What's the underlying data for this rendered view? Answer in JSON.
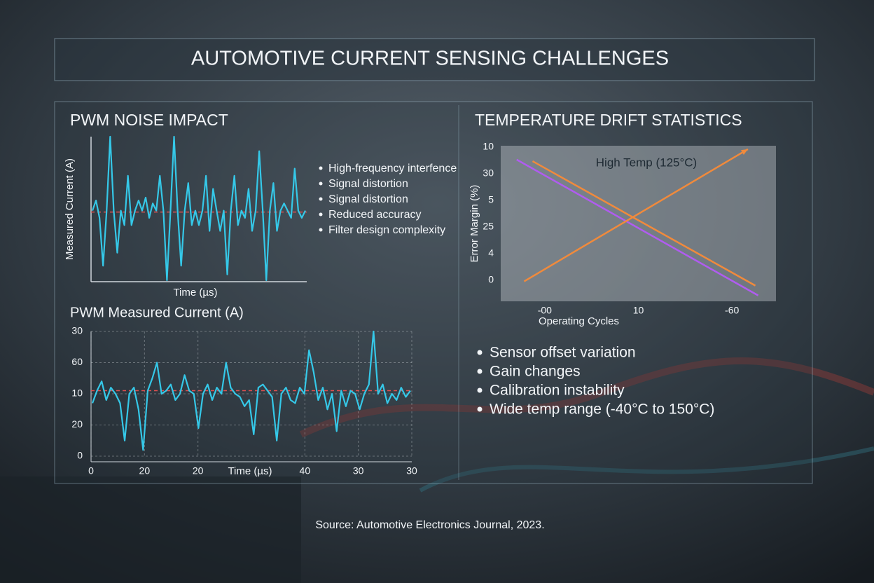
{
  "title": "AUTOMOTIVE CURRENT SENSING CHALLENGES",
  "source": "Source: Automotive Electronics Journal, 2023.",
  "bullets_left": [
    "High-frequency interfence",
    "Signal distortion",
    "Signal distortion",
    "Reduced accuracy",
    "Filter design complexity"
  ],
  "bullets_right": [
    "Sensor offset variation",
    "Gain changes",
    "Calibration instability",
    "Wide temp range (-40°C to 150°C)"
  ],
  "chart_data": [
    {
      "type": "line",
      "title": "PWM NOISE IMPACT",
      "y_label": "Measured Current (A)",
      "x_label": "Time (µs)",
      "ylim": [
        0,
        100
      ],
      "series": [
        {
          "color": "#35c8e8",
          "values": [
            49,
            56,
            44,
            11,
            49,
            100,
            49,
            20,
            49,
            39,
            73,
            39,
            49,
            56,
            49,
            58,
            44,
            54,
            49,
            73,
            49,
            1,
            49,
            100,
            49,
            11,
            49,
            68,
            39,
            49,
            39,
            49,
            73,
            35,
            64,
            49,
            35,
            49,
            5,
            49,
            73,
            39,
            49,
            44,
            64,
            35,
            49,
            90,
            49,
            1,
            49,
            68,
            35,
            49,
            54,
            49,
            44,
            78,
            49,
            44,
            49
          ]
        }
      ],
      "reference_line": {
        "value": 48,
        "color": "#e05050"
      }
    },
    {
      "type": "line",
      "title": "PWM Measured Current (A)",
      "x_label": "Time (µs)",
      "ylim": [
        0,
        40
      ],
      "yticks": [
        {
          "value": 40,
          "label": "30"
        },
        {
          "value": 30,
          "label": "60"
        },
        {
          "value": 20,
          "label": "10"
        },
        {
          "value": 10,
          "label": "20"
        },
        0
      ],
      "xlim": [
        0,
        6
      ],
      "xticks": [
        0,
        {
          "value": 1,
          "label": "20"
        },
        {
          "value": 2,
          "label": "20"
        },
        {
          "value": 4,
          "label": "40"
        },
        {
          "value": 5,
          "label": "30"
        },
        {
          "value": 6,
          "label": "30"
        }
      ],
      "grid": true,
      "series": [
        {
          "color": "#35c8e8",
          "values": [
            17,
            21,
            24,
            18,
            22,
            20,
            17,
            5,
            20,
            22,
            15,
            2,
            21,
            25,
            30,
            20,
            21,
            23,
            18,
            20,
            26,
            21,
            20,
            9,
            20,
            23,
            18,
            22,
            20,
            30,
            22,
            20,
            19,
            16,
            18,
            7,
            22,
            23,
            21,
            19,
            5,
            20,
            22,
            18,
            17,
            22,
            20,
            34,
            27,
            18,
            22,
            15,
            20,
            8,
            21,
            16,
            21,
            20,
            15,
            20,
            23,
            40,
            20,
            23,
            17,
            20,
            18,
            22,
            19,
            21
          ]
        }
      ],
      "reference_line": {
        "value": 21,
        "color": "#e05050"
      }
    },
    {
      "type": "line",
      "title": "TEMPERATURE DRIFT STATISTICS",
      "y_label": "Error Margin (%)",
      "x_label": "Operating Cycles",
      "annotation": "High Temp (125°C)",
      "ylim": [
        -0.8,
        5.05
      ],
      "yticks": [
        {
          "value": 5,
          "label": "10"
        },
        {
          "value": 4,
          "label": "30"
        },
        {
          "value": 3,
          "label": "5"
        },
        {
          "value": 2,
          "label": "25"
        },
        {
          "value": 1,
          "label": "4"
        },
        0
      ],
      "xlim": [
        -0.47,
        2.47
      ],
      "xticks": [
        {
          "value": 0,
          "label": "-00"
        },
        {
          "value": 1,
          "label": "10"
        },
        {
          "value": 2,
          "label": "-60"
        }
      ],
      "series": [
        {
          "color": "#b05cf0",
          "x": [
            -0.3,
            2.28
          ],
          "values": [
            4.53,
            -0.58
          ]
        },
        {
          "color": "#f08a3c",
          "x": [
            -0.22,
            2.17
          ],
          "values": [
            -0.05,
            4.92
          ]
        },
        {
          "color": "#f08a3c",
          "x": [
            -0.13,
            2.25
          ],
          "values": [
            4.47,
            -0.21
          ]
        }
      ]
    }
  ]
}
